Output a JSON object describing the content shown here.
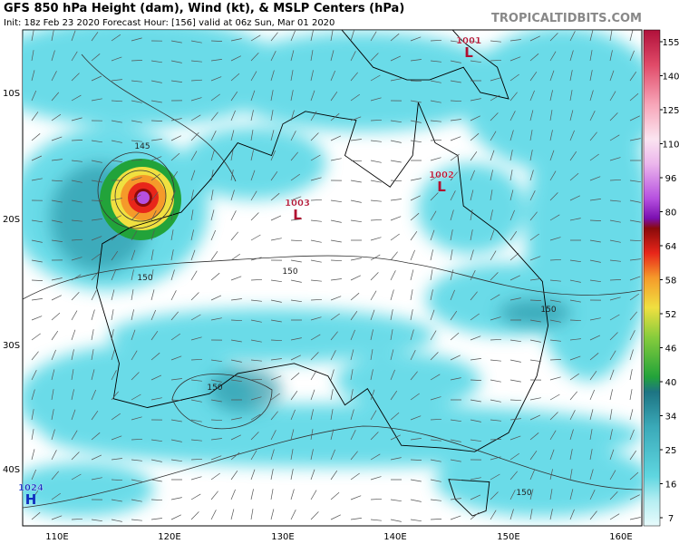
{
  "header": {
    "title": "GFS 850 hPa Height (dam), Wind (kt), & MSLP Centers (hPa)",
    "subtitle": "Init: 18z Feb 23 2020   Forecast Hour: [156]   valid at 06z Sun, Mar 01 2020",
    "site": "TROPICALTIDBITS.COM"
  },
  "map": {
    "lat_labels": [
      "10S",
      "20S",
      "30S",
      "40S"
    ],
    "lon_labels": [
      "110E",
      "120E",
      "130E",
      "140E",
      "150E",
      "160E"
    ],
    "centers": [
      {
        "value": "1001",
        "symbol": "L"
      },
      {
        "value": "1003",
        "symbol": "L"
      },
      {
        "value": "1002",
        "symbol": "L"
      },
      {
        "value": "1024",
        "symbol": "H"
      }
    ],
    "contour_labels": [
      "145",
      "150",
      "150",
      "150",
      "150",
      "150"
    ]
  },
  "colorbar": {
    "labels": [
      "155",
      "140",
      "125",
      "110",
      "96",
      "80",
      "64",
      "58",
      "52",
      "46",
      "40",
      "34",
      "25",
      "16",
      "7"
    ]
  }
}
